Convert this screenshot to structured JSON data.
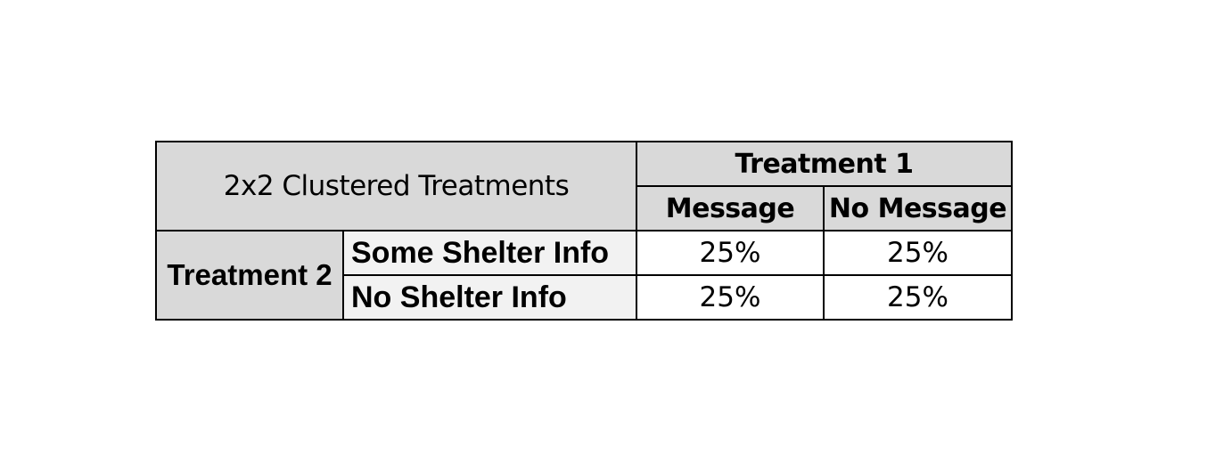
{
  "table": {
    "title": "2x2 Clustered Treatments",
    "column_group": "Treatment 1",
    "columns": [
      "Message",
      "No Message"
    ],
    "row_group": "Treatment 2",
    "rows": [
      {
        "label": "Some Shelter Info",
        "values": [
          "25%",
          "25%"
        ]
      },
      {
        "label": "No Shelter Info",
        "values": [
          "25%",
          "25%"
        ]
      }
    ],
    "colors": {
      "header_fill": "#d9d9d9",
      "row_label_fill": "#f2f2f2",
      "cell_fill": "#ffffff",
      "border": "#000000"
    }
  }
}
